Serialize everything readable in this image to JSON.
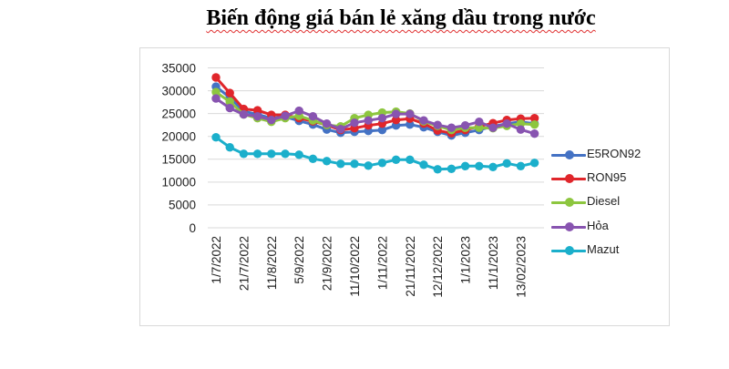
{
  "title": "Biến động giá bán lẻ xăng dầu trong nước",
  "chart_data": {
    "type": "line",
    "title": "Biến động giá bán lẻ xăng dầu trong nước",
    "xlabel": "",
    "ylabel": "",
    "ylim": [
      0,
      35000
    ],
    "yticks": [
      0,
      5000,
      10000,
      15000,
      20000,
      25000,
      30000,
      35000
    ],
    "ytick_labels": [
      "0",
      "5000",
      "10000",
      "15000",
      "20000",
      "25000",
      "30000",
      "35000"
    ],
    "grid": true,
    "legend_position": "right",
    "x_tick_labels": [
      "1/7/2022",
      "21/7/2022",
      "11/8/2022",
      "5/9/2022",
      "21/9/2022",
      "11/10/2022",
      "1/11/2022",
      "21/11/2022",
      "12/12/2022",
      "1/1/2023",
      "11/1/2023",
      "13/02/2023"
    ],
    "categories": [
      "1/7/2022",
      "",
      "21/7/2022",
      "",
      "11/8/2022",
      "",
      "5/9/2022",
      "",
      "21/9/2022",
      "",
      "11/10/2022",
      "",
      "1/11/2022",
      "",
      "21/11/2022",
      "",
      "12/12/2022",
      "",
      "1/1/2023",
      "",
      "11/1/2023",
      "",
      "13/02/2023",
      ""
    ],
    "series": [
      {
        "name": "E5RON92",
        "color": "#4472C4",
        "values": [
          30900,
          28500,
          25500,
          24800,
          24000,
          24300,
          23400,
          22600,
          21500,
          20800,
          21000,
          21200,
          21400,
          22400,
          22600,
          22000,
          21000,
          20200,
          20800,
          21400,
          22200,
          22800,
          23200,
          22800
        ]
      },
      {
        "name": "RON95",
        "color": "#E0262B",
        "values": [
          32900,
          29500,
          26000,
          25700,
          24700,
          24700,
          24000,
          23300,
          22500,
          21400,
          21800,
          22400,
          22800,
          23600,
          23900,
          22800,
          21300,
          20700,
          21400,
          22200,
          22900,
          23600,
          23900,
          24000
        ]
      },
      {
        "name": "Diesel",
        "color": "#8DC63F",
        "values": [
          29700,
          27600,
          24800,
          24000,
          23200,
          24000,
          24500,
          23500,
          22500,
          22200,
          24000,
          24700,
          25200,
          25400,
          25000,
          23300,
          22300,
          21400,
          21900,
          21900,
          21800,
          22300,
          22800,
          22600
        ]
      },
      {
        "name": "Hỏa",
        "color": "#8854B0",
        "values": [
          28300,
          26200,
          24800,
          24400,
          23600,
          24500,
          25600,
          24400,
          22800,
          21600,
          23000,
          23500,
          24000,
          24900,
          24900,
          23500,
          22500,
          21900,
          22400,
          23200,
          21900,
          22800,
          21500,
          20600
        ]
      },
      {
        "name": "Mazut",
        "color": "#1BAFCB",
        "values": [
          19800,
          17600,
          16200,
          16200,
          16200,
          16200,
          16000,
          15100,
          14600,
          14000,
          14000,
          13600,
          14200,
          14900,
          14900,
          13800,
          12800,
          12900,
          13500,
          13500,
          13300,
          14100,
          13500,
          14200
        ]
      }
    ]
  }
}
